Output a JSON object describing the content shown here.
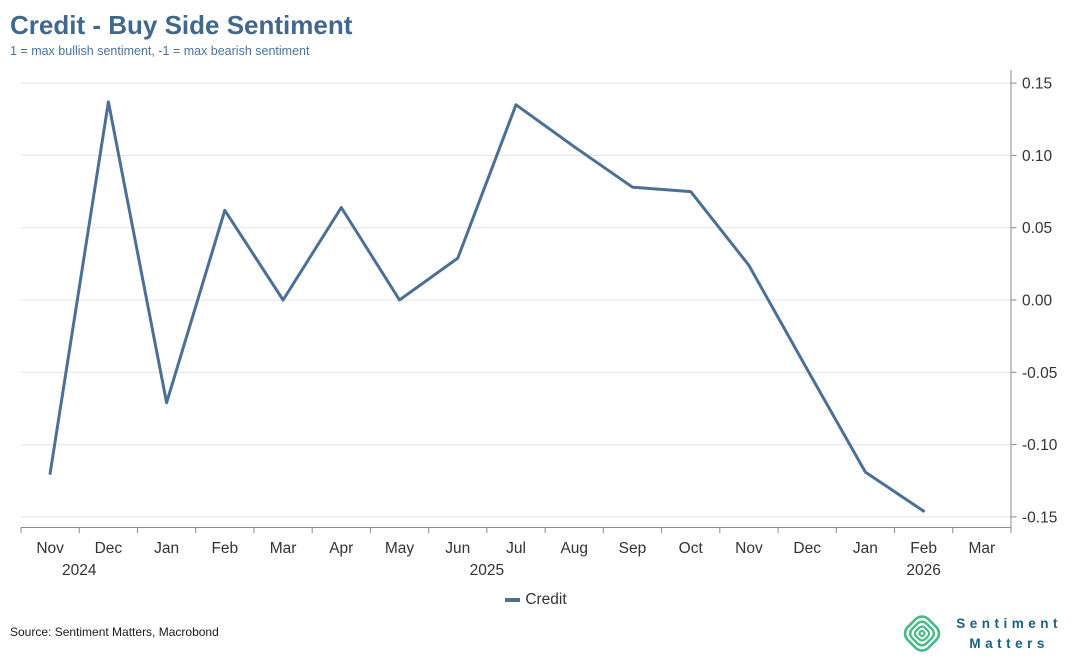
{
  "header": {
    "title": "Credit - Buy Side Sentiment",
    "subtitle": "1 = max bullish sentiment, -1 = max bearish sentiment"
  },
  "legend": {
    "label": "Credit"
  },
  "footer": {
    "source": "Source: Sentiment Matters, Macrobond",
    "brand_line1": "Sentiment",
    "brand_line2": "Matters"
  },
  "colors": {
    "title": "#40688f",
    "subtitle": "#49739a",
    "line": "#4c7095",
    "grid": "#e3e3e3",
    "axis": "#8a8a8a",
    "tick_label": "#333333",
    "logo_green": "#4cb98a",
    "logo_text": "#19607f"
  },
  "chart_data": {
    "type": "line",
    "title": "Credit - Buy Side Sentiment",
    "subtitle": "1 = max bullish sentiment, -1 = max bearish sentiment",
    "x": [
      "Nov 2024",
      "Dec 2024",
      "Jan 2025",
      "Feb 2025",
      "Mar 2025",
      "Apr 2025",
      "May 2025",
      "Jun 2025",
      "Jul 2025",
      "Aug 2025",
      "Sep 2025",
      "Oct 2025",
      "Nov 2025",
      "Dec 2025",
      "Jan 2026",
      "Feb 2026",
      "Mar 2026"
    ],
    "month_labels": [
      "Nov",
      "Dec",
      "Jan",
      "Feb",
      "Mar",
      "Apr",
      "May",
      "Jun",
      "Jul",
      "Aug",
      "Sep",
      "Oct",
      "Nov",
      "Dec",
      "Jan",
      "Feb",
      "Mar"
    ],
    "year_labels": [
      {
        "text": "2024",
        "month_index": 0.5
      },
      {
        "text": "2025",
        "month_index": 7.5
      },
      {
        "text": "2026",
        "month_index": 15
      }
    ],
    "series": [
      {
        "name": "Credit",
        "values": [
          -0.12,
          0.137,
          -0.071,
          0.062,
          0.0,
          0.064,
          0.0,
          0.029,
          0.135,
          0.106,
          0.078,
          0.075,
          0.024,
          -0.048,
          -0.119,
          -0.146,
          null
        ]
      }
    ],
    "yticks": [
      {
        "value": 0.15,
        "label": "0.15"
      },
      {
        "value": 0.1,
        "label": "0.10"
      },
      {
        "value": 0.05,
        "label": "0.05"
      },
      {
        "value": 0.0,
        "label": "0.00"
      },
      {
        "value": -0.05,
        "label": "-0.05"
      },
      {
        "value": -0.1,
        "label": "-0.10"
      },
      {
        "value": -0.15,
        "label": "-0.15"
      }
    ],
    "ylim": [
      -0.157,
      0.159
    ],
    "grid": "horizontal",
    "y_axis_side": "right",
    "legend_position": "bottom"
  }
}
